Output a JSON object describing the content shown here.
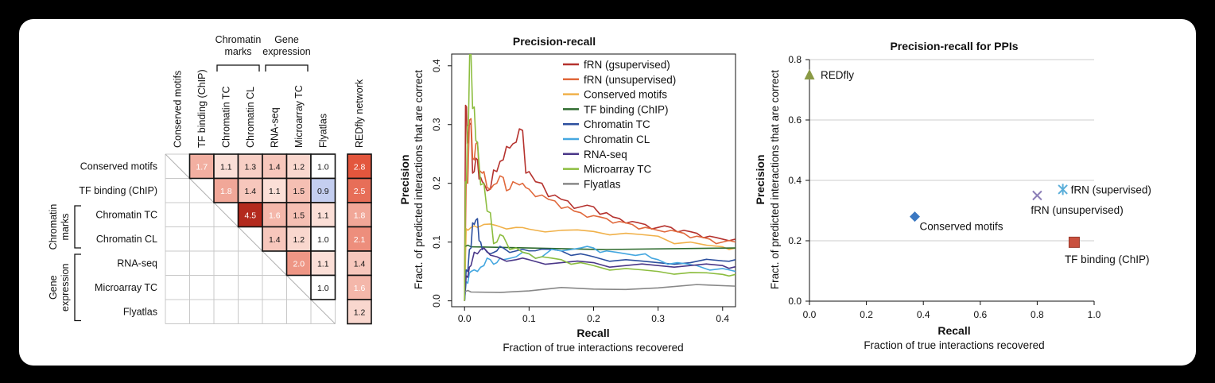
{
  "chart_data": [
    {
      "type": "heatmap",
      "row_labels": [
        "Conserved motifs",
        "TF binding (ChIP)",
        "Chromatin TC",
        "Chromatin CL",
        "RNA-seq",
        "Microarray TC",
        "Flyatlas"
      ],
      "col_labels": [
        "Conserved motifs",
        "TF binding (ChIP)",
        "Chromatin TC",
        "Chromatin CL",
        "RNA-seq",
        "Microarray TC",
        "Flyatlas"
      ],
      "col_groups": [
        {
          "label": "Chromatin marks",
          "lines": [
            "Chromatin",
            "marks"
          ],
          "cols": [
            2,
            3
          ]
        },
        {
          "label": "Gene expression",
          "lines": [
            "Gene",
            "expression"
          ],
          "cols": [
            4,
            5
          ]
        }
      ],
      "row_groups": [
        {
          "label": "Chromatin marks",
          "lines": [
            "Chromatin",
            "marks"
          ],
          "rows": [
            2,
            3
          ]
        },
        {
          "label": "Gene expression",
          "lines": [
            "Gene",
            "expression"
          ],
          "rows": [
            4,
            6
          ]
        }
      ],
      "cells": [
        {
          "r": 0,
          "c": 1,
          "v": "1.7"
        },
        {
          "r": 0,
          "c": 2,
          "v": "1.1"
        },
        {
          "r": 0,
          "c": 3,
          "v": "1.3"
        },
        {
          "r": 0,
          "c": 4,
          "v": "1.4"
        },
        {
          "r": 0,
          "c": 5,
          "v": "1.2"
        },
        {
          "r": 0,
          "c": 6,
          "v": "1.0"
        },
        {
          "r": 1,
          "c": 2,
          "v": "1.8"
        },
        {
          "r": 1,
          "c": 3,
          "v": "1.4"
        },
        {
          "r": 1,
          "c": 4,
          "v": "1.1"
        },
        {
          "r": 1,
          "c": 5,
          "v": "1.5"
        },
        {
          "r": 1,
          "c": 6,
          "v": "0.9"
        },
        {
          "r": 2,
          "c": 3,
          "v": "4.5"
        },
        {
          "r": 2,
          "c": 4,
          "v": "1.6"
        },
        {
          "r": 2,
          "c": 5,
          "v": "1.5"
        },
        {
          "r": 2,
          "c": 6,
          "v": "1.1"
        },
        {
          "r": 3,
          "c": 4,
          "v": "1.4"
        },
        {
          "r": 3,
          "c": 5,
          "v": "1.2"
        },
        {
          "r": 3,
          "c": 6,
          "v": "1.0"
        },
        {
          "r": 4,
          "c": 5,
          "v": "2.0"
        },
        {
          "r": 4,
          "c": 6,
          "v": "1.1"
        },
        {
          "r": 5,
          "c": 6,
          "v": "1.0"
        }
      ],
      "extra_column": {
        "label": "REDfly network",
        "values": [
          "2.8",
          "2.5",
          "1.8",
          "2.1",
          "1.4",
          "1.6",
          "1.2"
        ]
      }
    },
    {
      "type": "line",
      "title": "Precision-recall",
      "xlabel": "Recall",
      "xlabel2": "Fraction of true interactions recovered",
      "ylabel": "Precision",
      "ylabel2": "Fract. of predicted interactions that are correct",
      "xlim": [
        -0.02,
        0.42
      ],
      "ylim": [
        -0.01,
        0.42
      ],
      "xticks": [
        "0.0",
        "0.1",
        "0.2",
        "0.3",
        "0.4"
      ],
      "yticks": [
        "0.0",
        "0.1",
        "0.2",
        "0.3",
        "0.4"
      ],
      "legend": "top-right",
      "series": [
        {
          "name": "fRN (gsupervised)",
          "color": "#b5322e",
          "x": [
            0,
            0.003,
            0.005,
            0.01,
            0.015,
            0.02,
            0.025,
            0.03,
            0.04,
            0.05,
            0.06,
            0.07,
            0.08,
            0.09,
            0.1,
            0.12,
            0.14,
            0.16,
            0.18,
            0.2,
            0.22,
            0.24,
            0.26,
            0.28,
            0.3,
            0.32,
            0.34,
            0.36,
            0.38,
            0.4,
            0.42
          ],
          "y": [
            0,
            0.33,
            0.27,
            0.3,
            0.22,
            0.24,
            0.21,
            0.2,
            0.19,
            0.22,
            0.24,
            0.26,
            0.27,
            0.29,
            0.22,
            0.2,
            0.18,
            0.17,
            0.16,
            0.16,
            0.15,
            0.14,
            0.135,
            0.13,
            0.125,
            0.125,
            0.12,
            0.115,
            0.11,
            0.105,
            0.105
          ]
        },
        {
          "name": "fRN (unsupervised)",
          "color": "#e0683b",
          "x": [
            0,
            0.005,
            0.01,
            0.015,
            0.02,
            0.025,
            0.03,
            0.04,
            0.05,
            0.06,
            0.07,
            0.08,
            0.09,
            0.1,
            0.12,
            0.14,
            0.16,
            0.18,
            0.2,
            0.22,
            0.24,
            0.26,
            0.28,
            0.3,
            0.32,
            0.34,
            0.36,
            0.38,
            0.4,
            0.42
          ],
          "y": [
            0,
            0.2,
            0.31,
            0.24,
            0.27,
            0.22,
            0.22,
            0.19,
            0.2,
            0.21,
            0.19,
            0.2,
            0.2,
            0.19,
            0.18,
            0.17,
            0.16,
            0.15,
            0.145,
            0.14,
            0.135,
            0.13,
            0.125,
            0.12,
            0.12,
            0.115,
            0.11,
            0.105,
            0.1,
            0.1
          ]
        },
        {
          "name": "Conserved motifs",
          "color": "#f0b14a",
          "x": [
            0,
            0.005,
            0.01,
            0.02,
            0.03,
            0.05,
            0.08,
            0.1,
            0.15,
            0.2,
            0.25,
            0.3,
            0.35,
            0.4,
            0.42
          ],
          "y": [
            0,
            0.12,
            0.125,
            0.125,
            0.13,
            0.128,
            0.125,
            0.122,
            0.12,
            0.118,
            0.115,
            0.11,
            0.1,
            0.092,
            0.09
          ]
        },
        {
          "name": "TF binding (ChIP)",
          "color": "#2d6a2d",
          "x": [
            0,
            0.01,
            0.42
          ],
          "y": [
            0.092,
            0.092,
            0.09
          ]
        },
        {
          "name": "Chromatin TC",
          "color": "#2c4f9e",
          "x": [
            0,
            0.005,
            0.01,
            0.015,
            0.02,
            0.025,
            0.03,
            0.04,
            0.05,
            0.06,
            0.08,
            0.1,
            0.12,
            0.15,
            0.18,
            0.2,
            0.25,
            0.3,
            0.35,
            0.4,
            0.42
          ],
          "y": [
            0,
            0.05,
            0.09,
            0.13,
            0.14,
            0.1,
            0.09,
            0.08,
            0.085,
            0.09,
            0.085,
            0.085,
            0.088,
            0.085,
            0.08,
            0.075,
            0.07,
            0.065,
            0.065,
            0.068,
            0.07
          ]
        },
        {
          "name": "Chromatin CL",
          "color": "#45a7e0",
          "x": [
            0,
            0.005,
            0.01,
            0.02,
            0.03,
            0.04,
            0.05,
            0.06,
            0.08,
            0.1,
            0.12,
            0.15,
            0.18,
            0.2,
            0.22,
            0.25,
            0.28,
            0.3,
            0.33,
            0.36,
            0.4,
            0.42
          ],
          "y": [
            0,
            0.03,
            0.05,
            0.05,
            0.06,
            0.07,
            0.065,
            0.07,
            0.075,
            0.08,
            0.075,
            0.085,
            0.09,
            0.09,
            0.085,
            0.08,
            0.08,
            0.07,
            0.065,
            0.06,
            0.055,
            0.05
          ]
        },
        {
          "name": "RNA-seq",
          "color": "#4a3788",
          "x": [
            0,
            0.005,
            0.01,
            0.02,
            0.03,
            0.05,
            0.08,
            0.1,
            0.15,
            0.2,
            0.25,
            0.3,
            0.35,
            0.4,
            0.42
          ],
          "y": [
            0,
            0.04,
            0.06,
            0.08,
            0.09,
            0.075,
            0.07,
            0.07,
            0.065,
            0.065,
            0.06,
            0.06,
            0.06,
            0.06,
            0.058
          ]
        },
        {
          "name": "Microarray TC",
          "color": "#8cbd3f",
          "x": [
            0,
            0.003,
            0.006,
            0.01,
            0.015,
            0.02,
            0.03,
            0.04,
            0.05,
            0.06,
            0.08,
            0.1,
            0.12,
            0.15,
            0.18,
            0.2,
            0.25,
            0.3,
            0.35,
            0.4,
            0.42
          ],
          "y": [
            0,
            0.2,
            0.3,
            0.42,
            0.33,
            0.27,
            0.2,
            0.15,
            0.1,
            0.11,
            0.09,
            0.08,
            0.075,
            0.07,
            0.065,
            0.06,
            0.055,
            0.05,
            0.048,
            0.045,
            0.045
          ]
        },
        {
          "name": "Flyatlas",
          "color": "#888888",
          "x": [
            0,
            0.01,
            0.1,
            0.2,
            0.3,
            0.42
          ],
          "y": [
            0.015,
            0.015,
            0.017,
            0.02,
            0.022,
            0.025
          ]
        }
      ]
    },
    {
      "type": "scatter",
      "title": "Precision-recall for PPIs",
      "xlabel": "Recall",
      "xlabel2": "Fraction of true interactions recovered",
      "ylabel": "Precision",
      "ylabel2": "Fract. of predicted interactions that are correct",
      "xlim": [
        0,
        1.0
      ],
      "ylim": [
        0,
        0.8
      ],
      "xticks": [
        "0.0",
        "0.2",
        "0.4",
        "0.6",
        "0.8",
        "1.0"
      ],
      "yticks": [
        "0.0",
        "0.2",
        "0.4",
        "0.6",
        "0.8"
      ],
      "grid": true,
      "points": [
        {
          "label": "REDfly",
          "x": 0.0,
          "y": 0.75,
          "marker": "triangle",
          "color": "#8a9a45"
        },
        {
          "label": "Conserved motifs",
          "x": 0.37,
          "y": 0.28,
          "marker": "diamond",
          "color": "#3b78c2"
        },
        {
          "label": "fRN (unsupervised)",
          "x": 0.8,
          "y": 0.35,
          "marker": "x",
          "color": "#8c7fb8"
        },
        {
          "label": "fRN (supervised)",
          "x": 0.89,
          "y": 0.37,
          "marker": "asterisk",
          "color": "#5aaed9"
        },
        {
          "label": "TF binding (ChIP)",
          "x": 0.93,
          "y": 0.195,
          "marker": "square",
          "color": "#c9503e"
        }
      ]
    }
  ]
}
